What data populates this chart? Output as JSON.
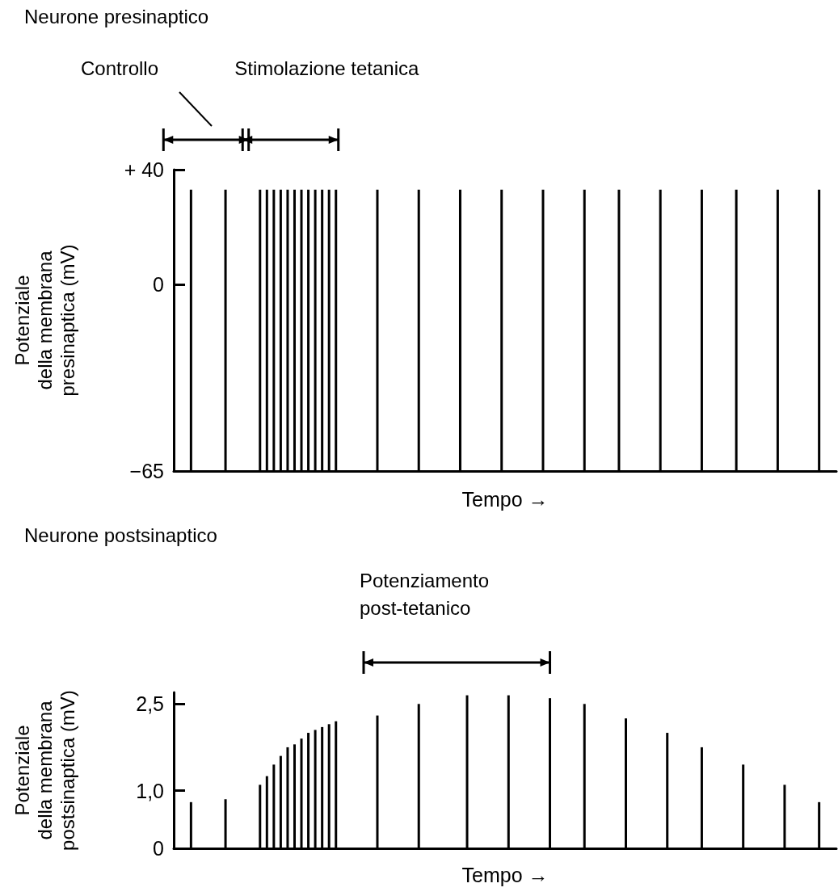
{
  "chart_data": [
    {
      "type": "bar",
      "title": "Neurone presinaptico",
      "xlabel": "Tempo →",
      "ylabel": "Potenziale della membrana presinaptica (mV)",
      "annotations": [
        "Controllo",
        "Stimolazione tetanica"
      ],
      "categories": [
        null,
        null,
        null,
        null,
        null,
        null,
        null,
        null,
        null,
        null,
        null,
        null,
        null,
        null,
        null,
        null,
        null,
        null,
        null,
        null,
        null,
        null,
        null,
        null,
        null,
        null,
        null,
        null,
        null,
        null,
        null,
        null,
        null,
        null,
        null,
        null,
        null,
        null,
        null,
        null,
        null,
        null,
        null,
        null,
        null,
        null,
        null,
        null,
        null,
        null,
        null,
        null,
        null,
        null,
        null,
        null,
        null,
        null,
        null,
        null,
        null,
        null,
        null,
        null,
        null,
        null,
        null,
        null,
        null,
        null,
        null,
        null,
        null,
        null,
        null,
        null,
        null,
        null,
        null,
        null,
        null,
        null,
        null,
        null,
        null,
        null,
        null,
        null,
        null,
        null,
        null,
        null,
        null,
        null,
        null,
        null
      ],
      "values": [
        null,
        null,
        98,
        null,
        null,
        null,
        null,
        98,
        null,
        null,
        null,
        null,
        98,
        98,
        98,
        98,
        98,
        98,
        98,
        98,
        98,
        98,
        98,
        98,
        null,
        null,
        null,
        null,
        null,
        98,
        null,
        null,
        null,
        null,
        null,
        98,
        null,
        null,
        null,
        null,
        null,
        98,
        null,
        null,
        null,
        null,
        null,
        98,
        null,
        null,
        null,
        null,
        null,
        98,
        null,
        null,
        null,
        null,
        null,
        98,
        null,
        null,
        null,
        null,
        98,
        null,
        null,
        null,
        null,
        null,
        98,
        null,
        null,
        null,
        null,
        null,
        98,
        null,
        null,
        null,
        null,
        98,
        null,
        null,
        null,
        null,
        null,
        98,
        null,
        null,
        null,
        null,
        null,
        98,
        null,
        null
      ],
      "base": [
        null,
        null,
        -65,
        null,
        null,
        null,
        null,
        -65,
        null,
        null,
        null,
        null,
        -65,
        -65,
        -65,
        -65,
        -65,
        -65,
        -65,
        -65,
        -65,
        -65,
        -65,
        -65,
        null,
        null,
        null,
        null,
        null,
        -65,
        null,
        null,
        null,
        null,
        null,
        -65,
        null,
        null,
        null,
        null,
        null,
        -65,
        null,
        null,
        null,
        null,
        null,
        -65,
        null,
        null,
        null,
        null,
        null,
        -65,
        null,
        null,
        null,
        null,
        null,
        -65,
        null,
        null,
        null,
        null,
        -65,
        null,
        null,
        null,
        null,
        null,
        -65,
        null,
        null,
        null,
        null,
        null,
        -65,
        null,
        null,
        null,
        null,
        -65,
        null,
        null,
        null,
        null,
        null,
        -65,
        null,
        null,
        null,
        null,
        null,
        -65,
        null,
        null
      ],
      "color": "#000000",
      "ylim": [
        -65,
        40
      ],
      "yticks": [
        {
          "value": -65,
          "label": "−65"
        },
        0,
        {
          "value": 40,
          "label": "+ 40"
        }
      ],
      "tick_labels": "y",
      "grid": false,
      "legend": false
    },
    {
      "type": "bar",
      "title": "Neurone postsinaptico",
      "xlabel": "Tempo →",
      "ylabel": "Potenziale della membrana postsinaptica (mV)",
      "annotations": [
        "Potenziamento post-tetanico"
      ],
      "categories": [
        null,
        null,
        null,
        null,
        null,
        null,
        null,
        null,
        null,
        null,
        null,
        null,
        null,
        null,
        null,
        null,
        null,
        null,
        null,
        null,
        null,
        null,
        null,
        null,
        null,
        null,
        null,
        null,
        null,
        null,
        null,
        null,
        null,
        null,
        null,
        null,
        null,
        null,
        null,
        null,
        null,
        null,
        null,
        null,
        null,
        null,
        null,
        null,
        null,
        null,
        null,
        null,
        null,
        null,
        null,
        null,
        null,
        null,
        null,
        null,
        null,
        null,
        null,
        null,
        null,
        null,
        null,
        null,
        null,
        null,
        null,
        null,
        null,
        null,
        null,
        null,
        null,
        null,
        null,
        null,
        null,
        null,
        null,
        null,
        null,
        null,
        null,
        null,
        null,
        null,
        null,
        null,
        null,
        null,
        null,
        null
      ],
      "values": [
        null,
        null,
        0.8,
        null,
        null,
        null,
        null,
        0.85,
        null,
        null,
        null,
        null,
        1.1,
        1.25,
        1.45,
        1.6,
        1.75,
        1.8,
        1.9,
        2.0,
        2.05,
        2.1,
        2.15,
        2.2,
        null,
        null,
        null,
        null,
        null,
        2.3,
        null,
        null,
        null,
        null,
        null,
        2.5,
        null,
        null,
        null,
        null,
        null,
        null,
        2.65,
        null,
        null,
        null,
        null,
        null,
        2.65,
        null,
        null,
        null,
        null,
        null,
        2.6,
        null,
        null,
        null,
        null,
        2.5,
        null,
        null,
        null,
        null,
        null,
        2.25,
        null,
        null,
        null,
        null,
        null,
        2.0,
        null,
        null,
        null,
        null,
        1.75,
        null,
        null,
        null,
        null,
        null,
        1.45,
        null,
        null,
        null,
        null,
        null,
        1.1,
        null,
        null,
        null,
        null,
        0.8,
        null,
        null
      ],
      "color": "#000000",
      "ylim": [
        0,
        2.7
      ],
      "yticks": [
        0,
        {
          "value": 1,
          "label": "1,0"
        },
        {
          "value": 2.5,
          "label": "2,5"
        }
      ],
      "tick_labels": "y",
      "grid": false,
      "legend": false
    }
  ]
}
